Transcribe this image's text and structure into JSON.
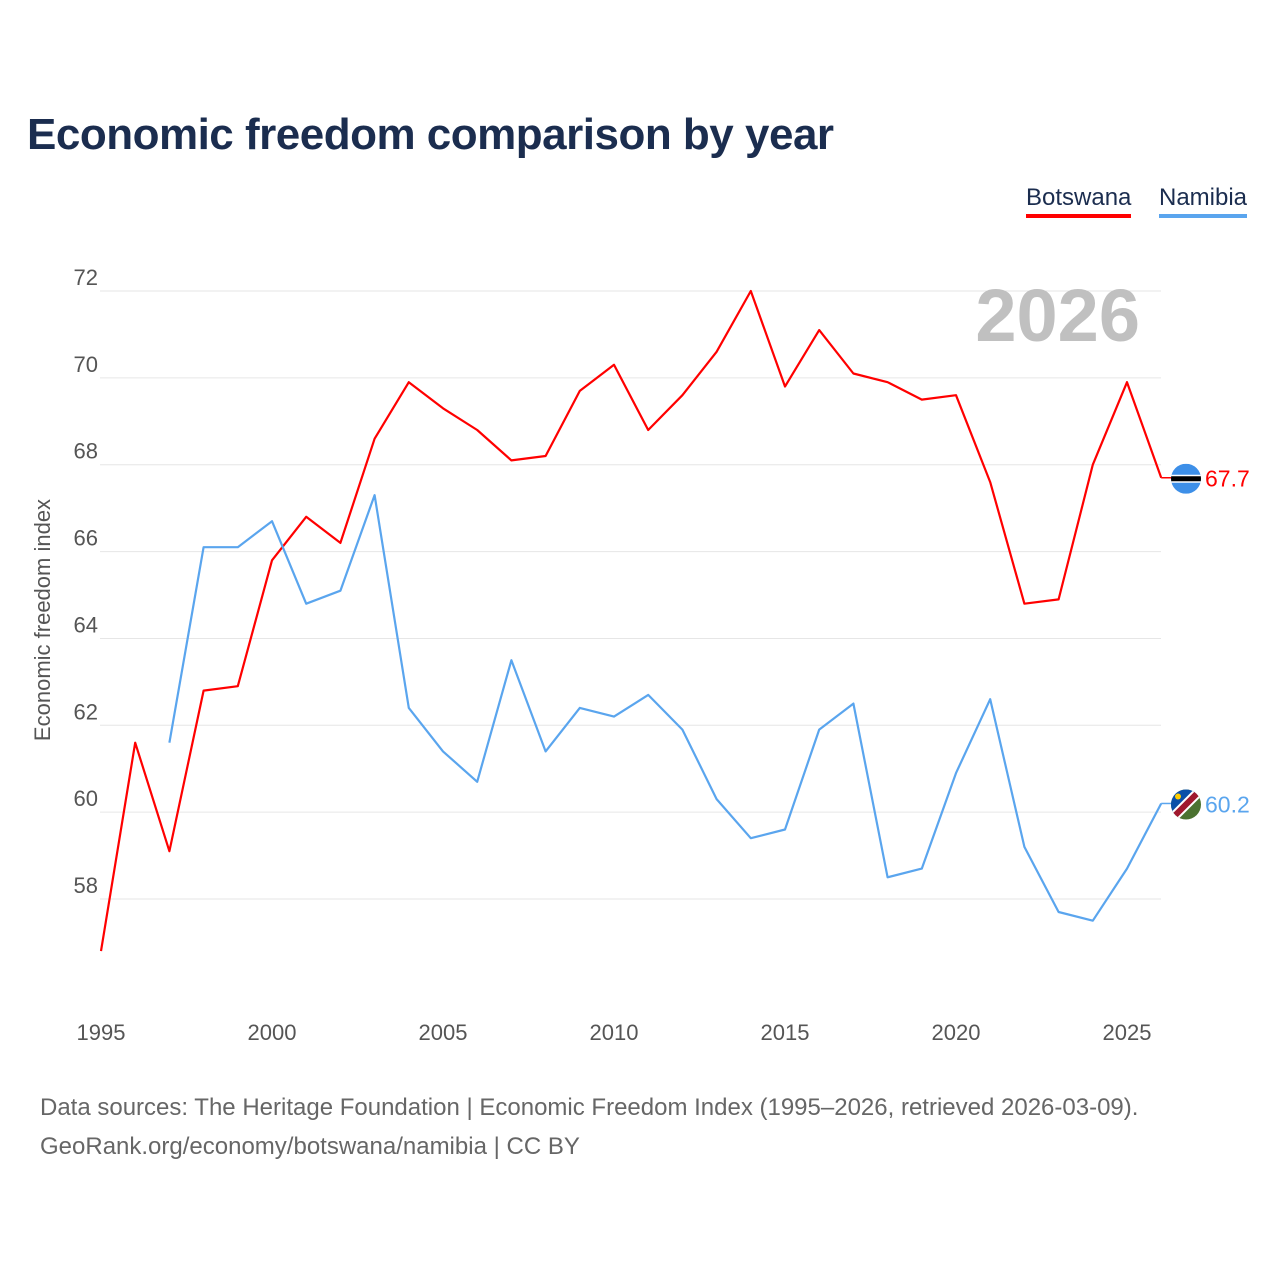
{
  "chart_data": {
    "type": "line",
    "title": "Economic freedom comparison by year",
    "xlabel": "",
    "ylabel": "Economic freedom index",
    "year_label": "2026",
    "xlim": [
      1995,
      2026
    ],
    "ylim": [
      56.8,
      72
    ],
    "x_ticks": [
      1995,
      2000,
      2005,
      2010,
      2015,
      2020,
      2025
    ],
    "y_ticks": [
      58,
      60,
      62,
      64,
      66,
      68,
      70,
      72
    ],
    "grid": true,
    "legend_position": "top-right",
    "series": [
      {
        "name": "Botswana",
        "color": "#ff0000",
        "end_label": "67.7",
        "x": [
          1995,
          1996,
          1997,
          1998,
          1999,
          2000,
          2001,
          2002,
          2003,
          2004,
          2005,
          2006,
          2007,
          2008,
          2009,
          2010,
          2011,
          2012,
          2013,
          2014,
          2015,
          2016,
          2017,
          2018,
          2019,
          2020,
          2021,
          2022,
          2023,
          2024,
          2025,
          2026
        ],
        "values": [
          56.8,
          61.6,
          59.1,
          62.8,
          62.9,
          65.8,
          66.8,
          66.2,
          68.6,
          69.9,
          69.3,
          68.8,
          68.1,
          68.2,
          69.7,
          70.3,
          68.8,
          69.6,
          70.6,
          72.0,
          69.8,
          71.1,
          70.1,
          69.9,
          69.5,
          69.6,
          67.6,
          64.8,
          64.9,
          68.0,
          69.9,
          67.7
        ]
      },
      {
        "name": "Namibia",
        "color": "#5aa5ee",
        "end_label": "60.2",
        "x": [
          1997,
          1998,
          1999,
          2000,
          2001,
          2002,
          2003,
          2004,
          2005,
          2006,
          2007,
          2008,
          2009,
          2010,
          2011,
          2012,
          2013,
          2014,
          2015,
          2016,
          2017,
          2018,
          2019,
          2020,
          2021,
          2022,
          2023,
          2024,
          2025,
          2026
        ],
        "values": [
          61.6,
          66.1,
          66.1,
          66.7,
          64.8,
          65.1,
          67.3,
          62.4,
          61.4,
          60.7,
          63.5,
          61.4,
          62.4,
          62.2,
          62.7,
          61.9,
          60.3,
          59.4,
          59.6,
          61.9,
          62.5,
          58.5,
          58.7,
          60.9,
          62.6,
          59.2,
          57.7,
          57.5,
          58.7,
          60.2
        ]
      }
    ]
  },
  "source_line1": "Data sources: The Heritage Foundation | Economic Freedom Index (1995–2026, retrieved 2026-03-09).",
  "source_line2": "GeoRank.org/economy/botswana/namibia | CC BY"
}
